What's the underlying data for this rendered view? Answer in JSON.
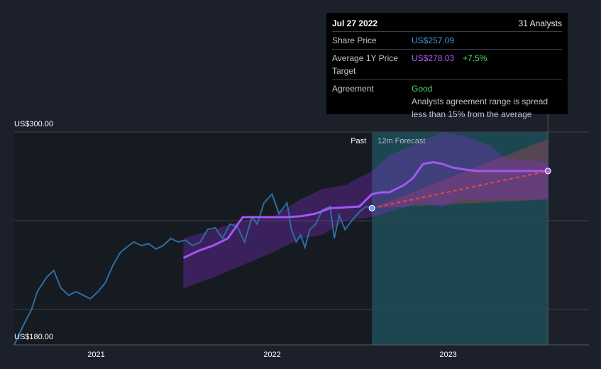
{
  "tooltip": {
    "date": "Jul 27 2022",
    "analysts": "31 Analysts",
    "share_price_label": "Share Price",
    "share_price_value": "US$257.09",
    "avg_target_label": "Average 1Y Price Target",
    "avg_target_value": "US$278.03",
    "avg_target_change": "+7.5%",
    "agreement_label": "Agreement",
    "agreement_value": "Good",
    "agreement_desc": "Analysts agreement range is spread less than 15% from the average"
  },
  "colors": {
    "background": "#1b202b",
    "price_line": "#2e6da4",
    "target_line": "#a050f0",
    "forecast_line": "#e74c3c",
    "forecast_zone": "#1f4a52"
  },
  "chart_data": {
    "type": "line",
    "ylim": [
      180,
      300
    ],
    "y_axis_labels": [
      "US$300.00",
      "US$180.00"
    ],
    "x_ticks": [
      "2021",
      "2022",
      "2023"
    ],
    "zone_labels": {
      "past": "Past",
      "forecast": "12m Forecast"
    },
    "series": [
      {
        "name": "Share Price",
        "x": [
          "2020-07-15",
          "2020-08-01",
          "2020-08-20",
          "2020-09-01",
          "2020-09-20",
          "2020-10-05",
          "2020-10-20",
          "2020-11-05",
          "2020-11-20",
          "2020-12-05",
          "2020-12-20",
          "2021-01-05",
          "2021-01-20",
          "2021-02-05",
          "2021-02-20",
          "2021-03-05",
          "2021-03-20",
          "2021-04-05",
          "2021-04-20",
          "2021-05-05",
          "2021-05-20",
          "2021-06-05",
          "2021-06-20",
          "2021-07-05",
          "2021-07-20",
          "2021-08-05",
          "2021-08-20",
          "2021-09-05",
          "2021-09-20",
          "2021-10-05",
          "2021-10-20",
          "2021-11-05",
          "2021-11-20",
          "2021-12-01",
          "2021-12-15",
          "2022-01-01",
          "2022-01-15",
          "2022-02-01",
          "2022-02-10",
          "2022-02-20",
          "2022-03-01",
          "2022-03-10",
          "2022-03-20",
          "2022-04-01",
          "2022-04-15",
          "2022-05-01",
          "2022-05-10",
          "2022-05-20",
          "2022-06-01",
          "2022-06-15",
          "2022-07-01",
          "2022-07-15",
          "2022-07-27"
        ],
        "values": [
          180,
          190,
          200,
          210,
          218,
          222,
          212,
          208,
          210,
          208,
          206,
          210,
          215,
          225,
          232,
          235,
          238,
          236,
          237,
          234,
          236,
          240,
          238,
          239,
          236,
          238,
          245,
          246,
          240,
          248,
          247,
          238,
          252,
          248,
          260,
          265,
          254,
          260,
          245,
          238,
          242,
          235,
          245,
          248,
          256,
          258,
          240,
          253,
          245,
          250,
          255,
          258,
          257.09
        ]
      },
      {
        "name": "Average 1Y Price Target",
        "x": [
          "2021-07-01",
          "2021-08-01",
          "2021-09-01",
          "2021-10-01",
          "2021-11-01",
          "2021-12-01",
          "2022-01-01",
          "2022-02-01",
          "2022-03-01",
          "2022-04-01",
          "2022-05-01",
          "2022-06-01",
          "2022-07-01",
          "2022-07-27",
          "2022-08-15",
          "2022-09-01",
          "2022-10-01",
          "2022-10-20",
          "2022-11-10",
          "2022-12-01",
          "2022-12-20",
          "2023-01-10",
          "2023-02-01",
          "2023-03-01",
          "2023-04-01",
          "2023-05-01",
          "2023-06-01",
          "2023-07-27"
        ],
        "values": [
          229,
          233,
          236,
          240,
          252,
          252,
          252,
          252,
          252.5,
          254,
          257,
          257.5,
          258,
          265,
          266,
          266,
          270,
          274,
          282,
          283,
          282,
          280,
          279,
          278,
          278,
          278,
          278,
          278.03
        ]
      },
      {
        "name": "Forecast",
        "x": [
          "2022-07-27",
          "2023-07-27"
        ],
        "values": [
          257.09,
          278.03
        ]
      }
    ],
    "bands": [
      {
        "name": "Price Target Range",
        "x": [
          "2021-07-01",
          "2021-09-01",
          "2021-11-01",
          "2022-01-01",
          "2022-03-01",
          "2022-04-15",
          "2022-06-01",
          "2022-07-27",
          "2022-09-01",
          "2022-11-01",
          "2022-12-20",
          "2023-02-01",
          "2023-04-01",
          "2023-05-01",
          "2023-07-27"
        ],
        "high": [
          240,
          245,
          250,
          252,
          262,
          268,
          270,
          278,
          287,
          294,
          300,
          298,
          292,
          285,
          283
        ],
        "low": [
          212,
          218,
          225,
          232,
          240,
          242,
          250,
          252,
          255,
          260,
          258,
          262,
          262,
          262,
          262
        ]
      },
      {
        "name": "Forecast Range",
        "x": [
          "2022-07-27",
          "2023-07-27"
        ],
        "high": [
          257.09,
          296
        ],
        "low": [
          257.09,
          262
        ]
      }
    ]
  }
}
